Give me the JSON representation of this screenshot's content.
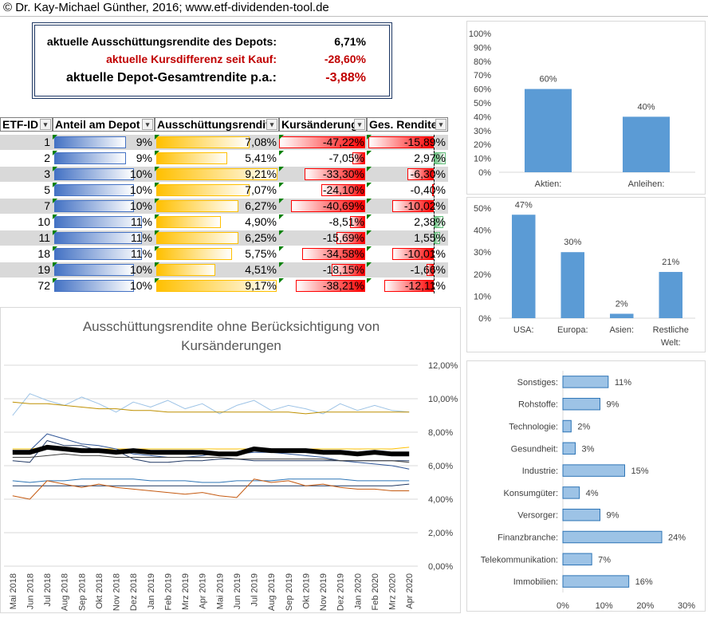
{
  "header": {
    "copyright": "© Dr. Kay-Michael Günther, 2016; www.etf-dividenden-tool.de"
  },
  "summary": {
    "row1_label": "aktuelle Ausschüttungsrendite des Depots:",
    "row1_value": "6,71%",
    "row2_label": "aktuelle Kursdifferenz seit Kauf:",
    "row2_value": "-28,60%",
    "row3_label": "aktuelle Depot-Gesamtrendite p.a.:",
    "row3_value": "-3,88%",
    "colors": {
      "negative": "#c00000",
      "text": "#000000",
      "border": "#1f3864"
    }
  },
  "table": {
    "headers": [
      "ETF-ID",
      "Anteil am Depot",
      "Ausschüttungsrendite",
      "Kursänderung",
      "Ges. Rendite"
    ],
    "rows": [
      {
        "id": "1",
        "anteil": "9%",
        "anteil_v": 9,
        "aus": "7,08%",
        "aus_v": 7.08,
        "kurs": "-47,22%",
        "kurs_v": -47.22,
        "ges": "-15,89%",
        "ges_v": -15.89
      },
      {
        "id": "2",
        "anteil": "9%",
        "anteil_v": 9,
        "aus": "5,41%",
        "aus_v": 5.41,
        "kurs": "-7,05%",
        "kurs_v": -7.05,
        "ges": "2,97%",
        "ges_v": 2.97
      },
      {
        "id": "3",
        "anteil": "10%",
        "anteil_v": 10,
        "aus": "9,21%",
        "aus_v": 9.21,
        "kurs": "-33,30%",
        "kurs_v": -33.3,
        "ges": "-6,30%",
        "ges_v": -6.3
      },
      {
        "id": "5",
        "anteil": "10%",
        "anteil_v": 10,
        "aus": "7,07%",
        "aus_v": 7.07,
        "kurs": "-24,10%",
        "kurs_v": -24.1,
        "ges": "-0,40%",
        "ges_v": -0.4
      },
      {
        "id": "7",
        "anteil": "10%",
        "anteil_v": 10,
        "aus": "6,27%",
        "aus_v": 6.27,
        "kurs": "-40,69%",
        "kurs_v": -40.69,
        "ges": "-10,02%",
        "ges_v": -10.02
      },
      {
        "id": "10",
        "anteil": "11%",
        "anteil_v": 11,
        "aus": "4,90%",
        "aus_v": 4.9,
        "kurs": "-8,51%",
        "kurs_v": -8.51,
        "ges": "2,38%",
        "ges_v": 2.38
      },
      {
        "id": "11",
        "anteil": "11%",
        "anteil_v": 11,
        "aus": "6,25%",
        "aus_v": 6.25,
        "kurs": "-15,69%",
        "kurs_v": -15.69,
        "ges": "1,55%",
        "ges_v": 1.55
      },
      {
        "id": "18",
        "anteil": "11%",
        "anteil_v": 11,
        "aus": "5,75%",
        "aus_v": 5.75,
        "kurs": "-34,58%",
        "kurs_v": -34.58,
        "ges": "-10,01%",
        "ges_v": -10.01
      },
      {
        "id": "19",
        "anteil": "10%",
        "anteil_v": 10,
        "aus": "4,51%",
        "aus_v": 4.51,
        "kurs": "-18,15%",
        "kurs_v": -18.15,
        "ges": "-1,66%",
        "ges_v": -1.66
      },
      {
        "id": "72",
        "anteil": "10%",
        "anteil_v": 10,
        "aus": "9,17%",
        "aus_v": 9.17,
        "kurs": "-38,21%",
        "kurs_v": -38.21,
        "ges": "-12,11%",
        "ges_v": -12.11
      }
    ],
    "colors": {
      "stripe": "#d9d9d9",
      "blue": "#4472c4",
      "orange": "#ffc000",
      "red": "#ff0000",
      "green": "#63be7b"
    }
  },
  "chart_data": [
    {
      "type": "line",
      "title": "Ausschüttungsrendite ohne Berücksichtigung von Kursänderungen",
      "x": [
        "Mai 2018",
        "Jun 2018",
        "Jul 2018",
        "Aug 2018",
        "Sep 2018",
        "Okt 2018",
        "Nov 2018",
        "Dez 2018",
        "Jan 2019",
        "Feb 2019",
        "Mrz 2019",
        "Apr 2019",
        "Mai 2019",
        "Jun 2019",
        "Jul 2019",
        "Aug 2019",
        "Sep 2019",
        "Okt 2019",
        "Nov 2019",
        "Dez 2019",
        "Jan 2020",
        "Feb 2020",
        "Mrz 2020",
        "Apr 2020"
      ],
      "ylim": [
        0,
        12
      ],
      "yticks": [
        "0,00%",
        "2,00%",
        "4,00%",
        "6,00%",
        "8,00%",
        "10,00%",
        "12,00%"
      ],
      "grid": true,
      "series": [
        {
          "color": "#9dc3e6",
          "width": 1,
          "values": [
            9.0,
            10.3,
            9.9,
            9.6,
            10.1,
            9.7,
            9.2,
            9.8,
            9.5,
            9.9,
            9.4,
            9.7,
            9.1,
            9.6,
            9.9,
            9.3,
            9.6,
            9.4,
            9.1,
            9.7,
            9.3,
            9.6,
            9.3,
            9.2
          ]
        },
        {
          "color": "#bf9000",
          "width": 1,
          "values": [
            9.8,
            9.7,
            9.7,
            9.6,
            9.5,
            9.4,
            9.4,
            9.3,
            9.3,
            9.2,
            9.2,
            9.2,
            9.2,
            9.2,
            9.2,
            9.2,
            9.2,
            9.1,
            9.2,
            9.2,
            9.2,
            9.2,
            9.2,
            9.2
          ]
        },
        {
          "color": "#ffc000",
          "width": 1,
          "values": [
            7.0,
            7.0,
            7.1,
            7.0,
            7.0,
            7.0,
            7.0,
            7.0,
            7.0,
            7.0,
            7.0,
            7.0,
            7.0,
            7.0,
            7.0,
            7.0,
            7.0,
            7.0,
            7.0,
            7.0,
            7.0,
            7.0,
            7.0,
            7.1
          ]
        },
        {
          "color": "#2f5597",
          "width": 1,
          "values": [
            6.9,
            6.9,
            7.9,
            7.6,
            7.3,
            7.2,
            7.0,
            6.7,
            6.6,
            6.5,
            6.5,
            6.6,
            6.8,
            6.7,
            6.8,
            6.8,
            6.7,
            6.6,
            6.5,
            6.3,
            6.2,
            6.1,
            6.0,
            5.8
          ]
        },
        {
          "color": "#203864",
          "width": 1,
          "values": [
            6.3,
            6.2,
            7.5,
            7.2,
            7.2,
            6.9,
            6.9,
            6.4,
            6.2,
            6.2,
            6.3,
            6.3,
            6.4,
            6.4,
            6.3,
            6.3,
            6.3,
            6.3,
            6.3,
            6.3,
            6.3,
            6.3,
            6.3,
            6.3
          ]
        },
        {
          "color": "#404040",
          "width": 1,
          "values": [
            6.5,
            6.5,
            6.6,
            6.7,
            6.6,
            6.6,
            6.5,
            6.5,
            6.5,
            6.5,
            6.5,
            6.5,
            6.5,
            6.4,
            6.4,
            6.4,
            6.4,
            6.4,
            6.4,
            6.3,
            6.3,
            6.3,
            6.3,
            6.2
          ]
        },
        {
          "color": "#000000",
          "width": 6,
          "values": [
            6.8,
            6.8,
            7.1,
            7.0,
            6.9,
            6.9,
            6.8,
            6.9,
            6.8,
            6.8,
            6.8,
            6.8,
            6.7,
            6.7,
            7.0,
            6.9,
            6.9,
            6.9,
            6.8,
            6.8,
            6.7,
            6.8,
            6.7,
            6.7
          ]
        },
        {
          "color": "#2e75b6",
          "width": 1,
          "values": [
            5.1,
            5.0,
            5.1,
            5.1,
            5.2,
            5.2,
            5.2,
            5.2,
            5.1,
            5.1,
            5.1,
            5.0,
            5.0,
            5.1,
            5.1,
            5.1,
            5.2,
            5.2,
            5.2,
            5.2,
            5.1,
            5.1,
            5.1,
            5.1
          ]
        },
        {
          "color": "#1f3864",
          "width": 1,
          "values": [
            4.8,
            4.8,
            4.8,
            4.8,
            4.8,
            4.8,
            4.8,
            4.8,
            4.8,
            4.8,
            4.8,
            4.8,
            4.8,
            4.8,
            4.8,
            4.8,
            4.8,
            4.8,
            4.8,
            4.8,
            4.8,
            4.8,
            4.8,
            4.9
          ]
        },
        {
          "color": "#c55a11",
          "width": 1,
          "values": [
            4.2,
            4.0,
            5.1,
            4.9,
            4.7,
            4.9,
            4.7,
            4.6,
            4.5,
            4.4,
            4.3,
            4.4,
            4.2,
            4.1,
            5.2,
            5.0,
            5.1,
            4.8,
            4.9,
            4.7,
            4.6,
            4.6,
            4.5,
            4.5
          ]
        }
      ]
    },
    {
      "type": "bar",
      "categories": [
        "Aktien:",
        "Anleihen:"
      ],
      "values": [
        60,
        40
      ],
      "labels": [
        "60%",
        "40%"
      ],
      "ylim": [
        0,
        100
      ],
      "yticks": [
        "0%",
        "10%",
        "20%",
        "30%",
        "40%",
        "50%",
        "60%",
        "70%",
        "80%",
        "90%",
        "100%"
      ],
      "color": "#5b9bd5"
    },
    {
      "type": "bar",
      "categories": [
        "USA:",
        "Europa:",
        "Asien:",
        "Restliche Welt:"
      ],
      "values": [
        47,
        30,
        2,
        21
      ],
      "labels": [
        "47%",
        "30%",
        "2%",
        "21%"
      ],
      "ylim": [
        0,
        50
      ],
      "yticks": [
        "0%",
        "10%",
        "20%",
        "30%",
        "40%",
        "50%"
      ],
      "color": "#5b9bd5"
    },
    {
      "type": "bar",
      "orientation": "horizontal",
      "categories": [
        "Sonstiges:",
        "Rohstoffe:",
        "Technologie:",
        "Gesundheit:",
        "Industrie:",
        "Konsumgüter:",
        "Versorger:",
        "Finanzbranche:",
        "Telekommunikation:",
        "Immobilien:"
      ],
      "values": [
        11,
        9,
        2,
        3,
        15,
        4,
        9,
        24,
        7,
        16
      ],
      "labels": [
        "11%",
        "9%",
        "2%",
        "3%",
        "15%",
        "4%",
        "9%",
        "24%",
        "7%",
        "16%"
      ],
      "xlim": [
        0,
        30
      ],
      "xticks": [
        "0%",
        "10%",
        "20%",
        "30%"
      ],
      "color": "#9dc3e6"
    }
  ]
}
